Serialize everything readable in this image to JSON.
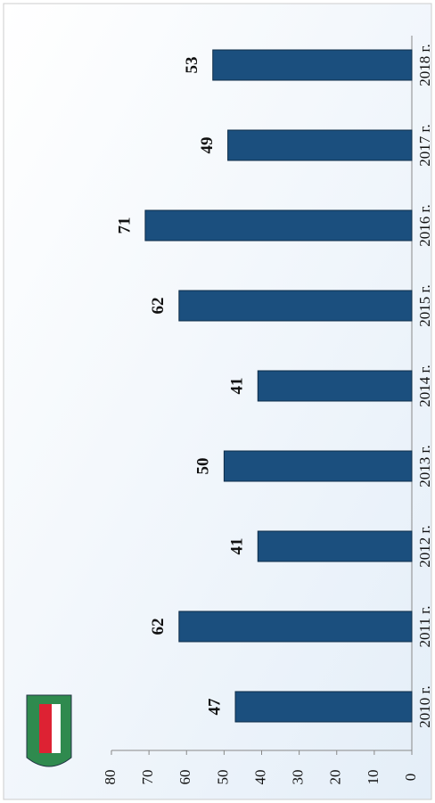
{
  "chart_data": {
    "type": "bar",
    "categories": [
      "2010 г.",
      "2011 г.",
      "2012 г.",
      "2013 г.",
      "2014 г.",
      "2015 г.",
      "2016 г.",
      "2017 г.",
      "2018 г."
    ],
    "values": [
      47,
      62,
      41,
      50,
      41,
      62,
      71,
      49,
      53
    ],
    "color": "#1b4f7e",
    "ylim": [
      0,
      80
    ],
    "yticks": [
      0,
      10,
      20,
      30,
      40,
      50,
      60,
      70,
      80
    ]
  }
}
